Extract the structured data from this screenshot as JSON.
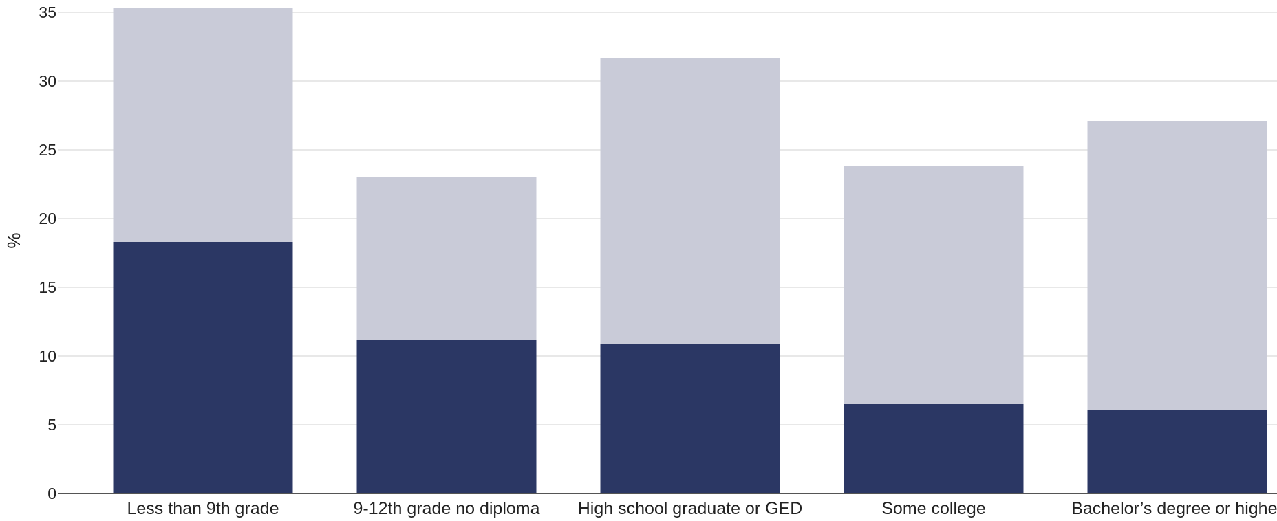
{
  "chart_data": {
    "type": "bar",
    "stacked": true,
    "categories": [
      "Less than 9th grade",
      "9-12th grade no diploma",
      "High school graduate or GED",
      "Some college",
      "Bachelor’s degree or higher"
    ],
    "series": [
      {
        "values": [
          18.3,
          11.2,
          10.9,
          6.5,
          6.1
        ],
        "color": "#2b3764"
      },
      {
        "values": [
          17.0,
          11.8,
          20.8,
          17.3,
          21.0
        ],
        "color": "#c9cbd8"
      }
    ],
    "totals": [
      35.3,
      23.0,
      31.7,
      23.8,
      27.1
    ],
    "ylabel": "%",
    "ylim": [
      0,
      35
    ],
    "yticks": [
      0,
      5,
      10,
      15,
      20,
      25,
      30,
      35
    ],
    "grid": true
  }
}
